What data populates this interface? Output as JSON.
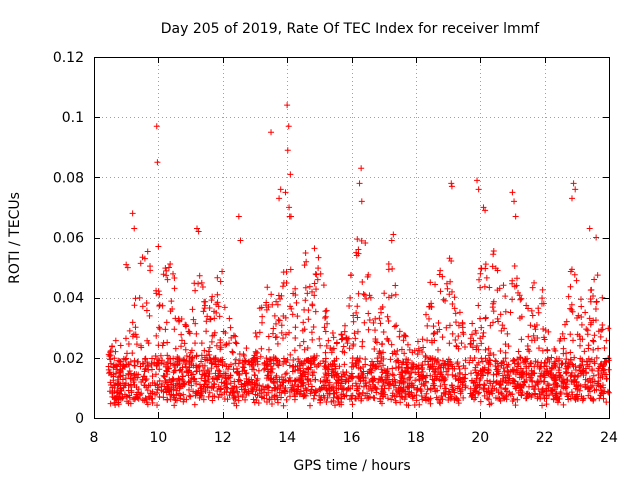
{
  "chart_data": {
    "type": "scatter",
    "title": "Day 205 of 2019, Rate Of TEC Index for receiver lmmf",
    "xlabel": "GPS time / hours",
    "ylabel": "ROTI / TECUs",
    "xlim": [
      8,
      24
    ],
    "ylim": [
      0,
      0.12
    ],
    "x_ticks": [
      8,
      10,
      12,
      14,
      16,
      18,
      20,
      22,
      24
    ],
    "x_tick_labels": [
      "8",
      "10",
      "12",
      "14",
      "16",
      "18",
      "20",
      "22",
      "24"
    ],
    "y_ticks": [
      0,
      0.02,
      0.04,
      0.06,
      0.08,
      0.1,
      0.12
    ],
    "y_tick_labels": [
      "0",
      "0.02",
      "0.04",
      "0.06",
      "0.08",
      "0.1",
      "0.12"
    ],
    "grid": true,
    "marker": "+",
    "color": "#ff0000",
    "data_start_hour": 8.45,
    "data_gap_hours": [
      19.55,
      19.65
    ],
    "series": [
      {
        "name": "ROTI",
        "x": [
          9.95,
          9.97,
          9.2,
          9.25,
          9.0,
          9.05,
          10.0,
          11.2,
          11.25,
          12.5,
          12.55,
          13.5,
          13.8,
          13.75,
          14.0,
          14.05,
          14.02,
          14.1,
          13.95,
          14.06,
          14.08,
          14.12,
          16.3,
          16.25,
          16.32,
          17.3,
          17.25,
          19.1,
          19.12,
          19.9,
          19.95,
          20.1,
          20.15,
          21.0,
          21.05,
          21.1,
          22.9,
          22.95,
          22.85,
          23.4,
          23.6
        ],
        "y": [
          0.097,
          0.085,
          0.068,
          0.063,
          0.051,
          0.05,
          0.057,
          0.063,
          0.062,
          0.067,
          0.059,
          0.095,
          0.076,
          0.073,
          0.104,
          0.097,
          0.089,
          0.081,
          0.075,
          0.07,
          0.067,
          0.067,
          0.083,
          0.078,
          0.072,
          0.061,
          0.059,
          0.078,
          0.077,
          0.079,
          0.076,
          0.07,
          0.069,
          0.075,
          0.072,
          0.067,
          0.078,
          0.076,
          0.073,
          0.063,
          0.06
        ]
      }
    ]
  }
}
